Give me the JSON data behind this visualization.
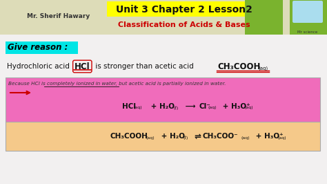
{
  "bg_color": "#e8e8e8",
  "header_bg": "#dddcb8",
  "title_text": "Unit 3 Chapter 2 Lesson2",
  "title_highlight": "#ffff00",
  "subtitle_text": "Classification of Acids & Bases",
  "subtitle_color": "#cc0000",
  "author_text": "Mr. Sherif Hawary",
  "author_color": "#333333",
  "mrscience_text": "Mr science",
  "green_bar_color": "#7ab32e",
  "give_reason_text": "Give reason :",
  "give_reason_color": "#000000",
  "give_reason_bg": "#00e5e5",
  "main_bg": "#f2f0f0",
  "main_text_color": "#111111",
  "pink_box_color": "#f06cbb",
  "orange_box_color": "#f5c98a",
  "because_text": "Because HCl is completely ionized in water, but acetic acid is partially ionized in water.",
  "because_underline_color": "#333333",
  "red_color": "#cc0000",
  "dark_color": "#111111",
  "border_color": "#aaaaaa"
}
